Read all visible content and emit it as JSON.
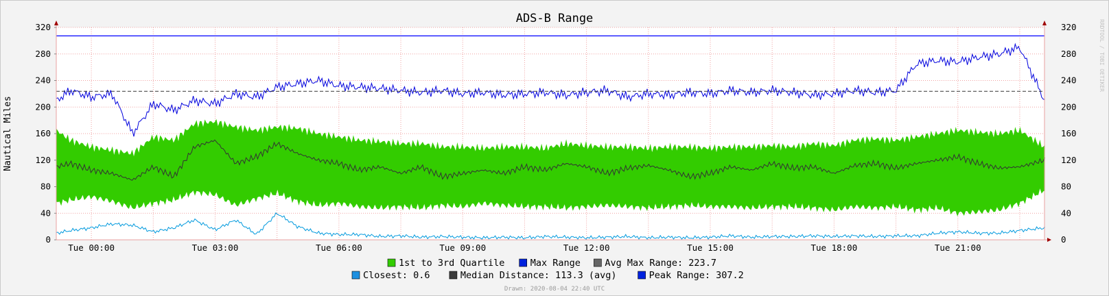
{
  "chart_data": {
    "type": "area",
    "title": "ADS-B Range",
    "ylabel": "Nautical Miles",
    "ylim": [
      0,
      320
    ],
    "yticks": [
      0,
      40,
      80,
      120,
      160,
      200,
      240,
      280,
      320
    ],
    "xlim_hours": [
      -0.85,
      23.1
    ],
    "xticks": [
      {
        "hour": 0,
        "label": "Tue 00:00"
      },
      {
        "hour": 3,
        "label": "Tue 03:00"
      },
      {
        "hour": 6,
        "label": "Tue 06:00"
      },
      {
        "hour": 9,
        "label": "Tue 09:00"
      },
      {
        "hour": 12,
        "label": "Tue 12:00"
      },
      {
        "hour": 15,
        "label": "Tue 15:00"
      },
      {
        "hour": 18,
        "label": "Tue 18:00"
      },
      {
        "hour": 21,
        "label": "Tue 21:00"
      }
    ],
    "grid": true,
    "x_hours": [
      -0.85,
      -0.5,
      0,
      0.5,
      1,
      1.5,
      2,
      2.5,
      3,
      3.5,
      4,
      4.5,
      5,
      5.5,
      6,
      6.5,
      7,
      7.5,
      8,
      8.5,
      9,
      9.5,
      10,
      10.5,
      11,
      11.5,
      12,
      12.5,
      13,
      13.5,
      14,
      14.5,
      15,
      15.5,
      16,
      16.5,
      17,
      17.5,
      18,
      18.5,
      19,
      19.5,
      20,
      20.5,
      21,
      21.5,
      22,
      22.5,
      23.1
    ],
    "series": [
      {
        "name": "1st to 3rd Quartile",
        "kind": "band",
        "low": [
          55,
          60,
          65,
          58,
          48,
          55,
          60,
          72,
          68,
          52,
          62,
          70,
          58,
          52,
          55,
          50,
          48,
          50,
          48,
          52,
          50,
          55,
          52,
          50,
          50,
          48,
          50,
          52,
          50,
          48,
          50,
          52,
          50,
          50,
          48,
          50,
          50,
          48,
          45,
          50,
          48,
          50,
          45,
          48,
          40,
          42,
          45,
          55,
          75
        ],
        "high": [
          165,
          150,
          140,
          135,
          130,
          155,
          150,
          175,
          178,
          170,
          165,
          170,
          168,
          160,
          155,
          150,
          148,
          145,
          145,
          140,
          140,
          138,
          140,
          140,
          138,
          145,
          142,
          140,
          140,
          138,
          140,
          140,
          138,
          140,
          140,
          142,
          140,
          145,
          142,
          150,
          152,
          150,
          155,
          160,
          165,
          162,
          160,
          165,
          140
        ],
        "color": "#33cc00"
      },
      {
        "name": "Max Range",
        "values": [
          210,
          225,
          215,
          220,
          160,
          205,
          195,
          210,
          205,
          220,
          215,
          230,
          235,
          240,
          232,
          230,
          228,
          225,
          222,
          225,
          220,
          222,
          218,
          220,
          222,
          218,
          222,
          225,
          215,
          220,
          218,
          222,
          220,
          225,
          222,
          225,
          222,
          218,
          220,
          225,
          222,
          225,
          265,
          270,
          268,
          275,
          280,
          290,
          210
        ],
        "color": "#0000dd"
      },
      {
        "name": "Avg Max Range",
        "value": 223.7,
        "color": "#555555"
      },
      {
        "name": "Closest",
        "values": [
          10,
          14,
          18,
          24,
          22,
          12,
          18,
          30,
          15,
          30,
          8,
          40,
          20,
          10,
          8,
          8,
          5,
          6,
          4,
          5,
          4,
          3,
          4,
          3,
          5,
          4,
          3,
          4,
          5,
          3,
          4,
          3,
          4,
          6,
          4,
          5,
          5,
          6,
          5,
          6,
          5,
          6,
          6,
          10,
          12,
          10,
          10,
          14,
          18
        ],
        "stat": "0.6",
        "color": "#0099dd"
      },
      {
        "name": "Median Distance",
        "values": [
          110,
          115,
          105,
          100,
          90,
          110,
          95,
          140,
          150,
          115,
          125,
          145,
          130,
          120,
          115,
          105,
          110,
          100,
          110,
          95,
          100,
          105,
          100,
          110,
          105,
          115,
          110,
          100,
          108,
          112,
          105,
          95,
          100,
          110,
          105,
          115,
          108,
          110,
          100,
          112,
          115,
          108,
          115,
          120,
          125,
          115,
          108,
          110,
          120
        ],
        "stat": "113.3 (avg)",
        "color": "#333333"
      },
      {
        "name": "Peak Range",
        "value": 307.2,
        "color": "#0000ff"
      }
    ]
  },
  "legend": {
    "row1": [
      {
        "label": "1st to 3rd Quartile",
        "color": "#33cc00"
      },
      {
        "label": "Max Range",
        "color": "#0022dd"
      },
      {
        "label": "Avg Max Range:  ",
        "value": "223.7",
        "color": "#666666",
        "icon": "dashed-swatch-icon"
      }
    ],
    "row2": [
      {
        "label": "Closest:  ",
        "value": "0.6",
        "color": "#1e90e0"
      },
      {
        "label": "Median Distance:  ",
        "value": "113.3 (avg)",
        "color": "#3a3a3a"
      },
      {
        "label": "Peak Range:  ",
        "value": "307.2",
        "color": "#0022dd"
      }
    ]
  },
  "footer": "Drawn: 2020-08-04 22:40 UTC",
  "watermark": "RRDTOOL / TOBI OETIKER"
}
